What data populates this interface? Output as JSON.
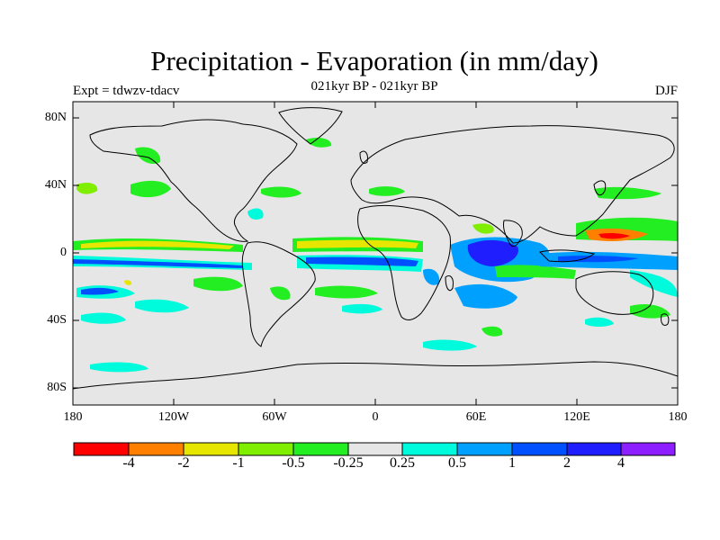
{
  "title": "Precipitation - Evaporation (in mm/day)",
  "subtitle": "021kyr BP - 021kyr BP",
  "expt_label": "Expt = tdwzv-tdacv",
  "season": "DJF",
  "lat_ticks": [
    "80N",
    "40N",
    "0",
    "40S",
    "80S"
  ],
  "lon_ticks": [
    "180",
    "120W",
    "60W",
    "0",
    "60E",
    "120E",
    "180"
  ],
  "colorbar": {
    "labels": [
      "-4",
      "-2",
      "-1",
      "-0.5",
      "-0.25",
      "0.25",
      "0.5",
      "1",
      "2",
      "4"
    ],
    "colors": [
      "#ff0000",
      "#ff7f00",
      "#e6e600",
      "#80ee00",
      "#22ee22",
      "#e6e6e6",
      "#00fadc",
      "#00a0ff",
      "#0050ff",
      "#1e1eff",
      "#8c1eff"
    ]
  },
  "colors": {
    "land_outline": "#000000",
    "background": "#e6e6e6"
  }
}
